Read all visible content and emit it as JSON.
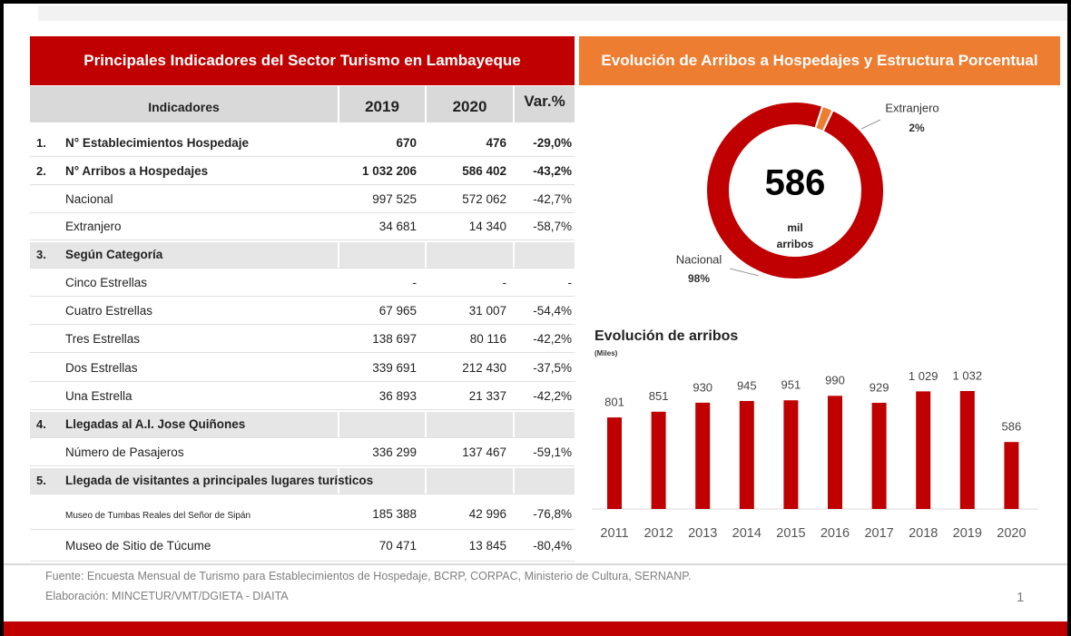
{
  "table": {
    "title": "Principales Indicadores del Sector Turismo en Lambayeque",
    "columns": [
      "Indicadores",
      "2019",
      "2020",
      "Var.%"
    ],
    "rows": [
      {
        "num": "1.",
        "label": "N° Establecimientos Hospedaje",
        "v2019": "670",
        "v2020": "476",
        "var": "-29,0%",
        "bold": true
      },
      {
        "num": "2.",
        "label": "N° Arribos a Hospedajes",
        "v2019": "1 032 206",
        "v2020": "586 402",
        "var": "-43,2%",
        "bold": true
      },
      {
        "label": "Nacional",
        "v2019": "997 525",
        "v2020": "572 062",
        "var": "-42,7%"
      },
      {
        "label": "Extranjero",
        "v2019": "34 681",
        "v2020": "14 340",
        "var": "-58,7%"
      },
      {
        "num": "3.",
        "label": "Según Categoría",
        "bold": true,
        "section": true
      },
      {
        "label": "Cinco Estrellas",
        "v2019": "-",
        "v2020": "-",
        "var": "-"
      },
      {
        "label": "Cuatro Estrellas",
        "v2019": "67 965",
        "v2020": "31 007",
        "var": "-54,4%"
      },
      {
        "label": "Tres Estrellas",
        "v2019": "138 697",
        "v2020": "80 116",
        "var": "-42,2%"
      },
      {
        "label": "Dos Estrellas",
        "v2019": "339 691",
        "v2020": "212 430",
        "var": "-37,5%"
      },
      {
        "label": "Una Estrella",
        "v2019": "36 893",
        "v2020": "21 337",
        "var": "-42,2%"
      },
      {
        "num": "4.",
        "label": "Llegadas al A.I. Jose Quiñones",
        "bold": true,
        "section": true
      },
      {
        "label": "Número de Pasajeros",
        "v2019": "336 299",
        "v2020": "137 467",
        "var": "-59,1%"
      },
      {
        "num": "5.",
        "label": "Llegada de visitantes a principales lugares turísticos",
        "bold": true,
        "section": true
      },
      {
        "label": "Museo de Tumbas Reales del Señor de Sipán",
        "v2019": "185 388",
        "v2020": "42 996",
        "var": "-76,8%",
        "small": true
      },
      {
        "label": "Museo de Sitio de Túcume",
        "v2019": "70 471",
        "v2020": "13 845",
        "var": "-80,4%"
      }
    ]
  },
  "chart_data": [
    {
      "type": "donut",
      "title": "Evolución de Arribos a Hospedajes y Estructura Porcentual",
      "categories": [
        "Extranjero",
        "Nacional"
      ],
      "values": [
        2,
        98
      ],
      "value_labels": [
        "2%",
        "98%"
      ],
      "colors": [
        "#ed7d31",
        "#c00000"
      ],
      "center_text": [
        "586",
        "mil",
        "arribos"
      ]
    },
    {
      "type": "bar",
      "title": "Evolución de arribos",
      "subtitle": "(Miles)",
      "categories": [
        "2011",
        "2012",
        "2013",
        "2014",
        "2015",
        "2016",
        "2017",
        "2018",
        "2019",
        "2020"
      ],
      "values": [
        801,
        851,
        930,
        945,
        951,
        990,
        929,
        1029,
        1032,
        586
      ],
      "value_labels": [
        "801",
        "851",
        "930",
        "945",
        "951",
        "990",
        "929",
        "1 029",
        "1 032",
        "586"
      ],
      "color": "#c00000"
    }
  ],
  "footer": {
    "source": "Fuente: Encuesta Mensual de Turismo para Establecimientos de Hospedaje, BCRP, CORPAC, Ministerio de Cultura, SERNANP.",
    "credit": "Elaboración: MINCETUR/VMT/DGIETA - DIAITA",
    "page": "1"
  }
}
